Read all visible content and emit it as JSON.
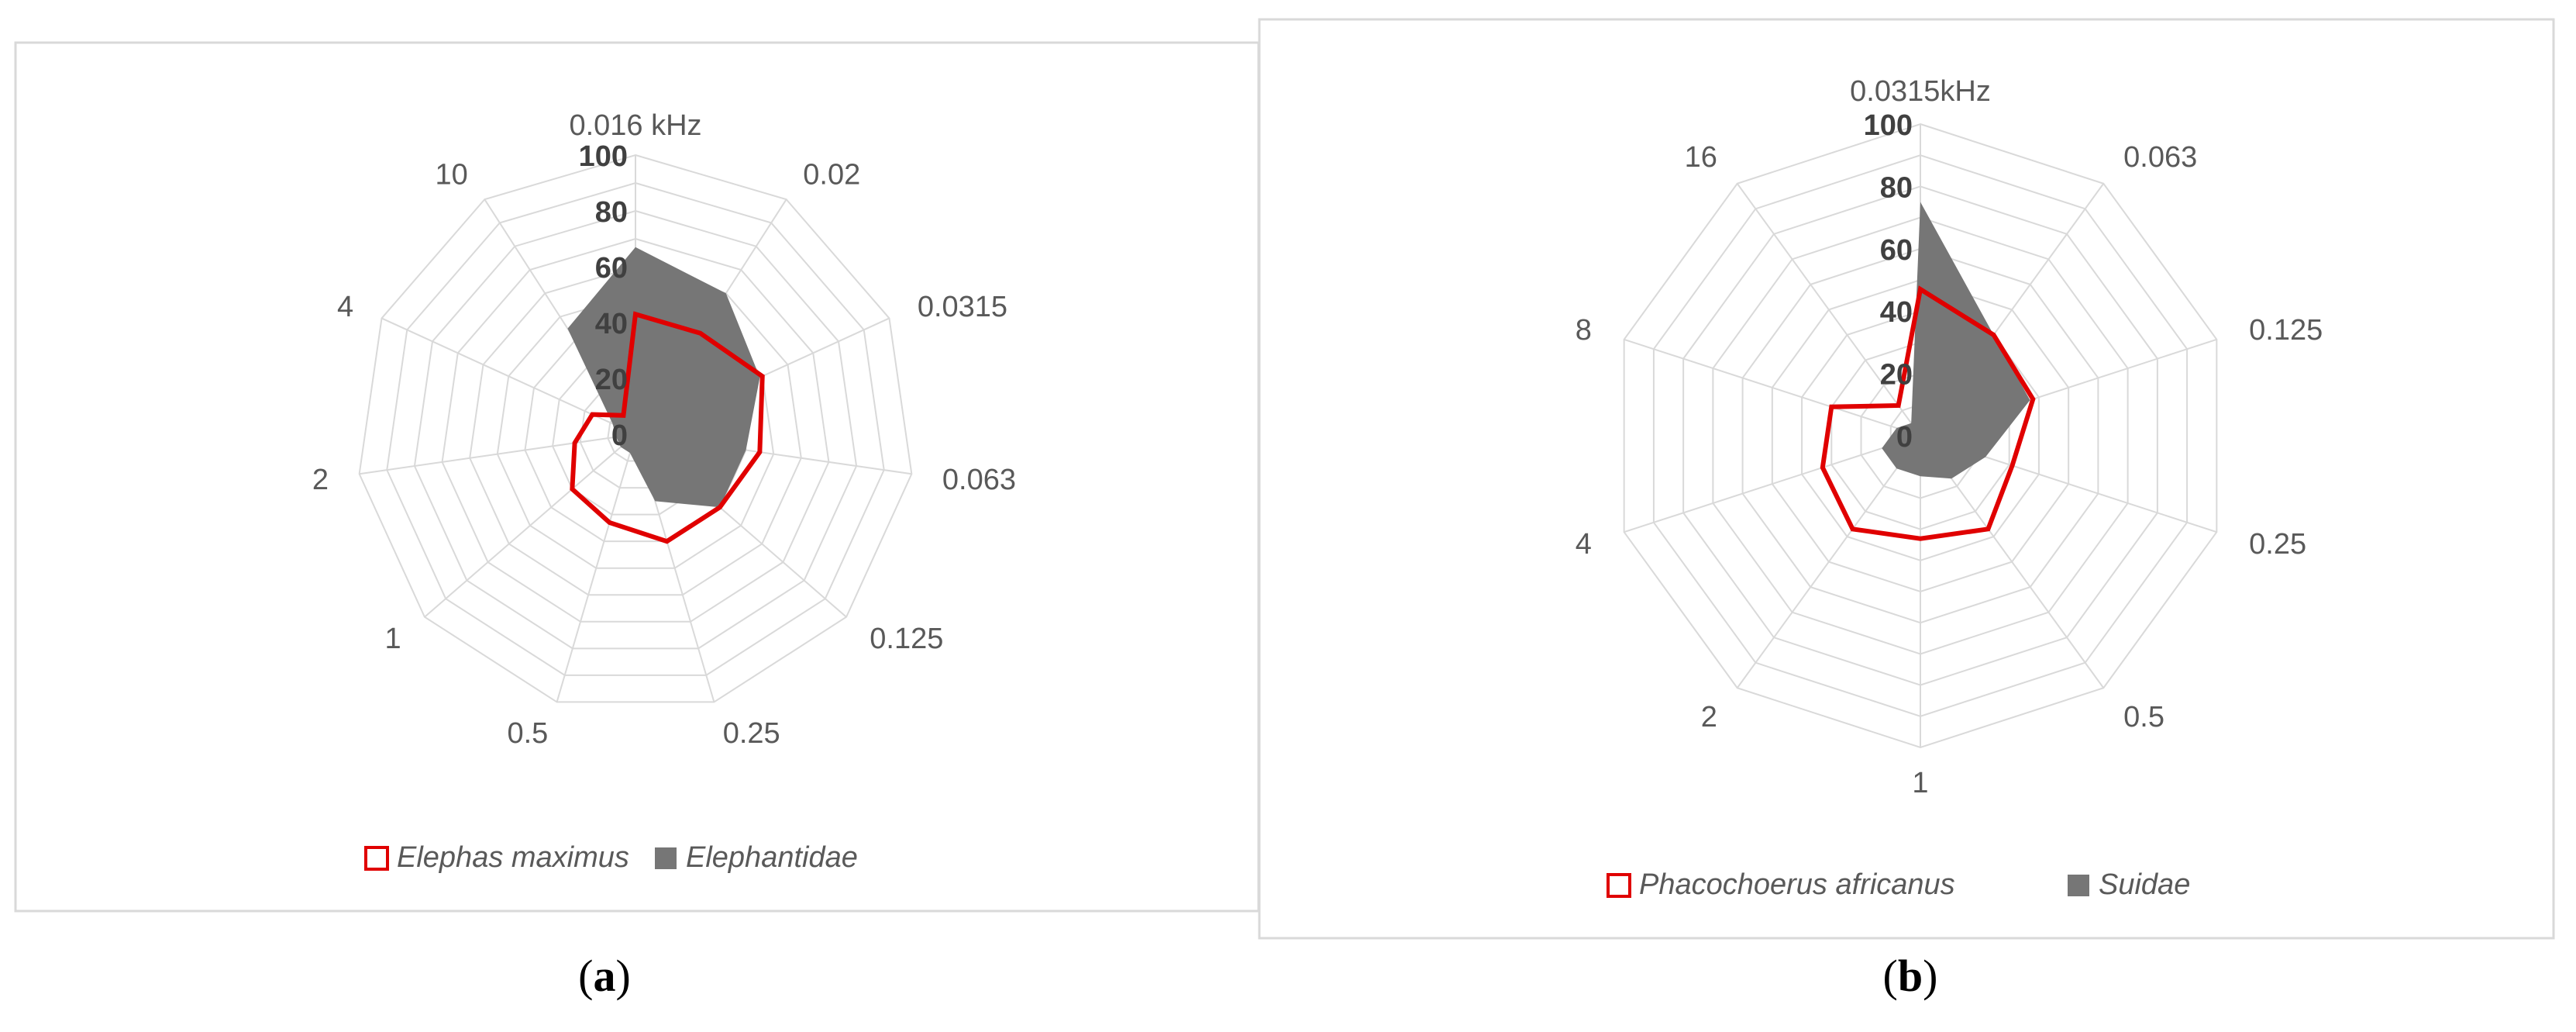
{
  "figure": {
    "panel_labels": [
      {
        "open": "(",
        "letter": "a",
        "close": ")"
      },
      {
        "open": "(",
        "letter": "b",
        "close": ")"
      }
    ]
  },
  "colors": {
    "grid": "#d9d9d9",
    "frame": "#d9d9d9",
    "fill_series": "#767676",
    "outline_series": "#e00000",
    "axis_text": "#595959",
    "bold_text": "#404040"
  },
  "chart_data": [
    {
      "type": "radar",
      "categories": [
        "0.016 kHz",
        "0.02",
        "0.0315",
        "0.063",
        "0.125",
        "0.25",
        "0.5",
        "1",
        "2",
        "4",
        "10"
      ],
      "radial_ticks": [
        "0",
        "20",
        "40",
        "60",
        "80",
        "100"
      ],
      "rlim": [
        0,
        100
      ],
      "grid_step": 10,
      "grid": true,
      "legend_position": "bottom",
      "series": [
        {
          "name": "Elephas maximus",
          "style": "outline",
          "values": [
            43,
            43,
            50,
            45,
            40,
            40,
            33,
            30,
            22,
            17,
            8
          ]
        },
        {
          "name": "Elephantidae",
          "style": "filled",
          "values": [
            67,
            60,
            49,
            40,
            40,
            25,
            7,
            7,
            7,
            9,
            45
          ]
        }
      ]
    },
    {
      "type": "radar",
      "categories": [
        "0.0315kHz",
        "0.063",
        "0.125",
        "0.25",
        "0.5",
        "1",
        "2",
        "4",
        "8",
        "16"
      ],
      "radial_ticks": [
        "0",
        "20",
        "40",
        "60",
        "80",
        "100"
      ],
      "rlim": [
        0,
        100
      ],
      "grid_step": 10,
      "grid": true,
      "legend_position": "bottom",
      "series": [
        {
          "name": "Phacochoerus africanus",
          "style": "outline",
          "values": [
            47,
            40,
            38,
            31,
            37,
            33,
            37,
            33,
            30,
            12
          ]
        },
        {
          "name": "Suidae",
          "style": "filled",
          "values": [
            75,
            40,
            37,
            22,
            17,
            13,
            13,
            13,
            8,
            5
          ]
        }
      ]
    }
  ]
}
